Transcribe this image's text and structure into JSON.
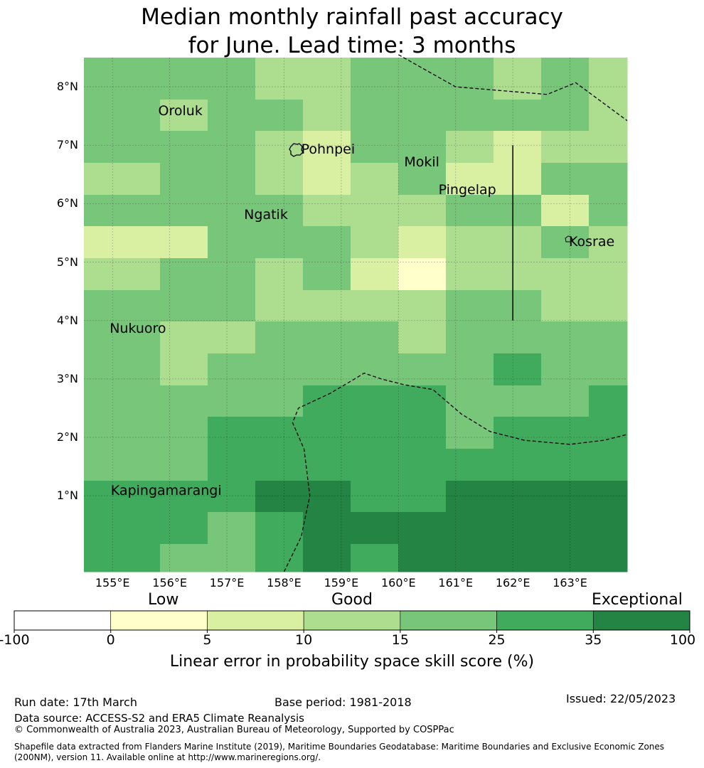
{
  "title": {
    "line1": "Median monthly rainfall past accuracy",
    "line2": "for June. Lead time: 3 months"
  },
  "map": {
    "lon_range": [
      154.5,
      164.0
    ],
    "lat_range": [
      -0.3,
      8.5
    ],
    "cell_size_deg": 0.833,
    "grid_lines_lon": [
      155,
      156,
      157,
      158,
      159,
      160,
      161,
      162,
      163
    ],
    "grid_lines_lat": [
      1,
      2,
      3,
      4,
      5,
      6,
      7,
      8
    ],
    "lat_labels": [
      "8°N",
      "7°N",
      "6°N",
      "5°N",
      "4°N",
      "3°N",
      "2°N",
      "1°N"
    ],
    "lon_labels": [
      "155°E",
      "156°E",
      "157°E",
      "158°E",
      "159°E",
      "160°E",
      "161°E",
      "162°E",
      "163°E"
    ],
    "skill_grid_rows_top_to_bottom": [
      [
        3,
        3,
        3,
        2,
        2,
        3,
        3,
        3,
        2,
        3,
        2
      ],
      [
        3,
        2,
        3,
        3,
        2,
        3,
        3,
        3,
        3,
        3,
        2
      ],
      [
        3,
        3,
        3,
        2,
        1,
        3,
        3,
        2,
        1,
        2,
        2
      ],
      [
        2,
        3,
        3,
        2,
        1,
        2,
        3,
        1,
        1,
        3,
        3
      ],
      [
        3,
        3,
        3,
        3,
        2,
        2,
        2,
        3,
        3,
        1,
        3
      ],
      [
        1,
        1,
        3,
        3,
        3,
        2,
        1,
        2,
        2,
        3,
        2
      ],
      [
        2,
        3,
        3,
        2,
        3,
        1,
        0,
        2,
        2,
        2,
        2
      ],
      [
        3,
        3,
        3,
        2,
        2,
        2,
        2,
        3,
        3,
        2,
        2
      ],
      [
        3,
        2,
        2,
        3,
        3,
        3,
        2,
        3,
        3,
        3,
        3
      ],
      [
        3,
        2,
        3,
        3,
        3,
        3,
        3,
        3,
        4,
        3,
        3
      ],
      [
        3,
        3,
        3,
        3,
        4,
        4,
        4,
        3,
        3,
        3,
        4
      ],
      [
        3,
        3,
        4,
        4,
        4,
        4,
        4,
        3,
        4,
        4,
        4
      ],
      [
        3,
        3,
        4,
        4,
        4,
        4,
        4,
        4,
        4,
        4,
        4
      ],
      [
        4,
        4,
        4,
        5,
        5,
        4,
        4,
        5,
        5,
        5,
        5
      ],
      [
        4,
        4,
        3,
        4,
        5,
        5,
        5,
        5,
        5,
        5,
        5
      ],
      [
        4,
        3,
        3,
        4,
        5,
        4,
        5,
        5,
        5,
        5,
        5
      ]
    ],
    "places": [
      {
        "name": "Oroluk",
        "lon": 155.8,
        "lat": 7.58
      },
      {
        "name": "Pohnpei",
        "lon": 158.3,
        "lat": 6.92
      },
      {
        "name": "Mokil",
        "lon": 160.1,
        "lat": 6.7
      },
      {
        "name": "Pingelap",
        "lon": 160.7,
        "lat": 6.22
      },
      {
        "name": "Ngatik",
        "lon": 157.3,
        "lat": 5.8
      },
      {
        "name": "Kosrae",
        "lon": 162.98,
        "lat": 5.33
      },
      {
        "name": "Nukuoro",
        "lon": 154.95,
        "lat": 3.85
      },
      {
        "name": "Kapingamarangi",
        "lon": 154.97,
        "lat": 1.07
      }
    ],
    "boundary_lines": [
      [
        [
          160.0,
          8.55
        ],
        [
          161.0,
          8.0
        ],
        [
          162.6,
          7.87
        ],
        [
          163.1,
          8.07
        ],
        [
          164.0,
          7.42
        ]
      ],
      [
        [
          158.0,
          -0.3
        ],
        [
          158.3,
          0.3
        ],
        [
          158.45,
          1.0
        ],
        [
          158.35,
          1.8
        ],
        [
          158.15,
          2.25
        ],
        [
          158.25,
          2.5
        ],
        [
          158.8,
          2.75
        ],
        [
          159.2,
          2.98
        ],
        [
          159.4,
          3.1
        ],
        [
          159.7,
          3.0
        ],
        [
          160.1,
          2.9
        ],
        [
          160.6,
          2.82
        ],
        [
          161.1,
          2.4
        ],
        [
          161.6,
          2.1
        ],
        [
          162.2,
          1.95
        ],
        [
          163.0,
          1.88
        ],
        [
          163.6,
          1.95
        ],
        [
          164.0,
          2.05
        ]
      ]
    ],
    "solid_line": [
      [
        162.0,
        7.0
      ],
      [
        162.0,
        4.0
      ]
    ]
  },
  "colorbar": {
    "category_top_labels": {
      "low": "Low",
      "good": "Good",
      "exceptional": "Exceptional"
    },
    "tick_labels": [
      "-100",
      "0",
      "5",
      "10",
      "15",
      "25",
      "35",
      "100"
    ],
    "colors": [
      "#ffffff",
      "#ffffcc",
      "#d9f0a3",
      "#addd8e",
      "#78c679",
      "#41ab5d",
      "#238443"
    ],
    "title": "Linear error in probability space skill score (%)"
  },
  "footer": {
    "run_date": "Run date: 17th March",
    "base_period": "Base period: 1981-2018",
    "issued": "Issued: 22/05/2023",
    "data_source": "Data source: ACCESS-S2 and ERA5 Climate Reanalysis",
    "copyright": "© Commonwealth of Australia 2023, Australian Bureau of Meteorology, Supported by COSPPac",
    "shapefile_note": "Shapefile data extracted from Flanders Marine Institute (2019), Maritime Boundaries Geodatabase: Maritime Boundaries and Exclusive Economic Zones (200NM), version 11. Available online at http://www.marineregions.org/."
  }
}
